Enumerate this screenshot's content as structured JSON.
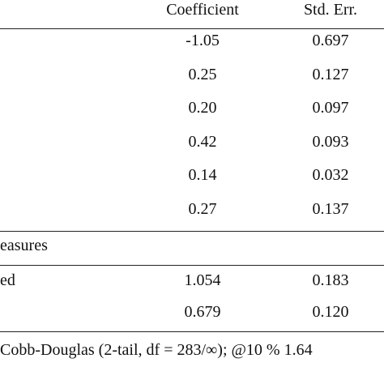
{
  "table": {
    "header": {
      "coefficient": "Coefficient",
      "std_err": "Std. Err."
    },
    "rows": [
      {
        "coefficient": "-1.05",
        "std_err": "0.697"
      },
      {
        "coefficient": "0.25",
        "std_err": "0.127"
      },
      {
        "coefficient": "0.20",
        "std_err": "0.097"
      },
      {
        "coefficient": "0.42",
        "std_err": "0.093"
      },
      {
        "coefficient": "0.14",
        "std_err": "0.032"
      },
      {
        "coefficient": "0.27",
        "std_err": "0.137"
      }
    ],
    "section": {
      "title": "easures",
      "rows": [
        {
          "label": "ed",
          "coefficient": "1.054",
          "std_err": "0.183"
        },
        {
          "coefficient": "0.679",
          "std_err": "0.120"
        }
      ]
    },
    "note": "Cobb-Douglas (2-tail, df = 283/∞); @10 % 1.64"
  }
}
